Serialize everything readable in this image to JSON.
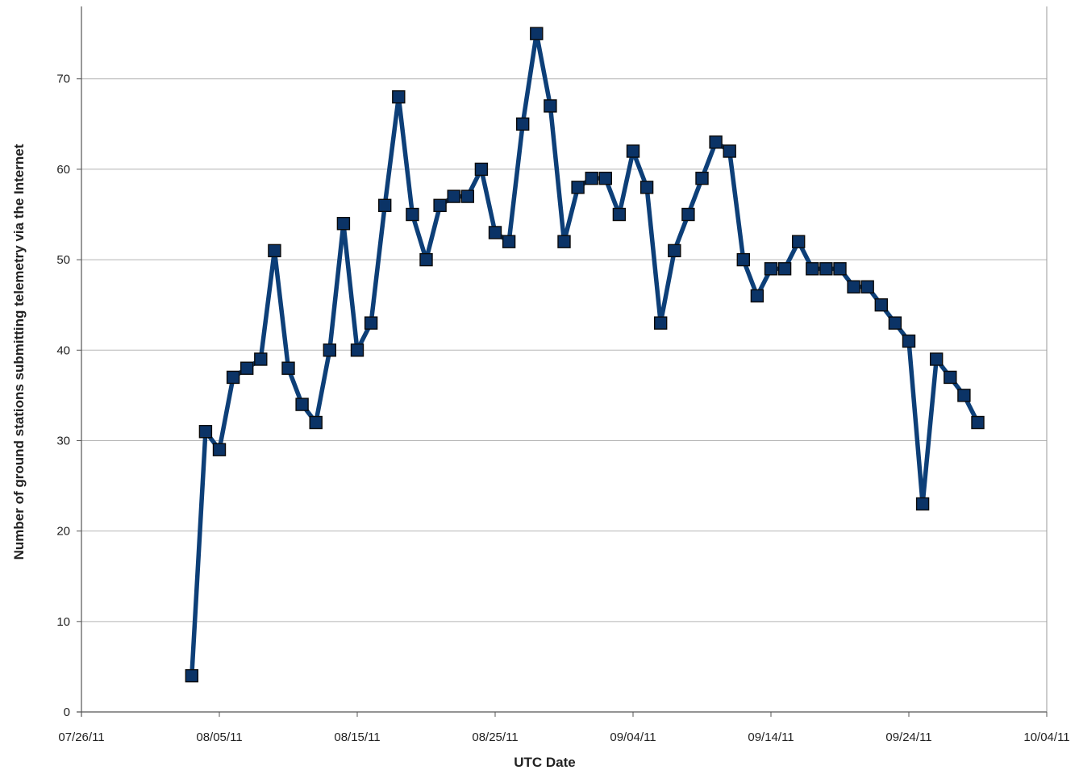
{
  "chart_data": {
    "type": "line",
    "title": "",
    "xlabel": "UTC Date",
    "ylabel": "Number of ground stations submitting telemetry via the Internet",
    "xlim": [
      "2011-07-26",
      "2011-10-04"
    ],
    "ylim": [
      0,
      78
    ],
    "x_ticks": [
      "07/26/11",
      "08/05/11",
      "08/15/11",
      "08/25/11",
      "09/04/11",
      "09/14/11",
      "09/24/11",
      "10/04/11"
    ],
    "y_ticks": [
      0,
      10,
      20,
      30,
      40,
      50,
      60,
      70
    ],
    "grid": {
      "horizontal": true,
      "vertical": false
    },
    "legend": "none",
    "series": [
      {
        "color": "#0d3f78",
        "marker_color": "#0b3366",
        "marker": "square",
        "x": [
          "2011-08-03",
          "2011-08-04",
          "2011-08-05",
          "2011-08-06",
          "2011-08-07",
          "2011-08-08",
          "2011-08-09",
          "2011-08-10",
          "2011-08-11",
          "2011-08-12",
          "2011-08-13",
          "2011-08-14",
          "2011-08-15",
          "2011-08-16",
          "2011-08-17",
          "2011-08-18",
          "2011-08-19",
          "2011-08-20",
          "2011-08-21",
          "2011-08-22",
          "2011-08-23",
          "2011-08-24",
          "2011-08-25",
          "2011-08-26",
          "2011-08-27",
          "2011-08-28",
          "2011-08-29",
          "2011-08-30",
          "2011-08-31",
          "2011-09-01",
          "2011-09-02",
          "2011-09-03",
          "2011-09-04",
          "2011-09-05",
          "2011-09-06",
          "2011-09-07",
          "2011-09-08",
          "2011-09-09",
          "2011-09-10",
          "2011-09-11",
          "2011-09-12",
          "2011-09-13",
          "2011-09-14",
          "2011-09-15",
          "2011-09-16",
          "2011-09-17",
          "2011-09-18",
          "2011-09-19",
          "2011-09-20",
          "2011-09-21",
          "2011-09-22",
          "2011-09-23",
          "2011-09-24",
          "2011-09-25",
          "2011-09-26",
          "2011-09-27",
          "2011-09-28",
          "2011-09-29"
        ],
        "y": [
          4,
          31,
          29,
          37,
          38,
          39,
          51,
          38,
          34,
          32,
          40,
          54,
          40,
          43,
          56,
          68,
          55,
          50,
          56,
          57,
          57,
          60,
          53,
          52,
          65,
          75,
          67,
          52,
          58,
          59,
          59,
          55,
          62,
          58,
          43,
          51,
          55,
          59,
          63,
          62,
          50,
          46,
          49,
          49,
          52,
          49,
          49,
          49,
          47,
          47,
          45,
          43,
          41,
          23,
          39,
          37,
          35,
          32
        ]
      }
    ]
  }
}
